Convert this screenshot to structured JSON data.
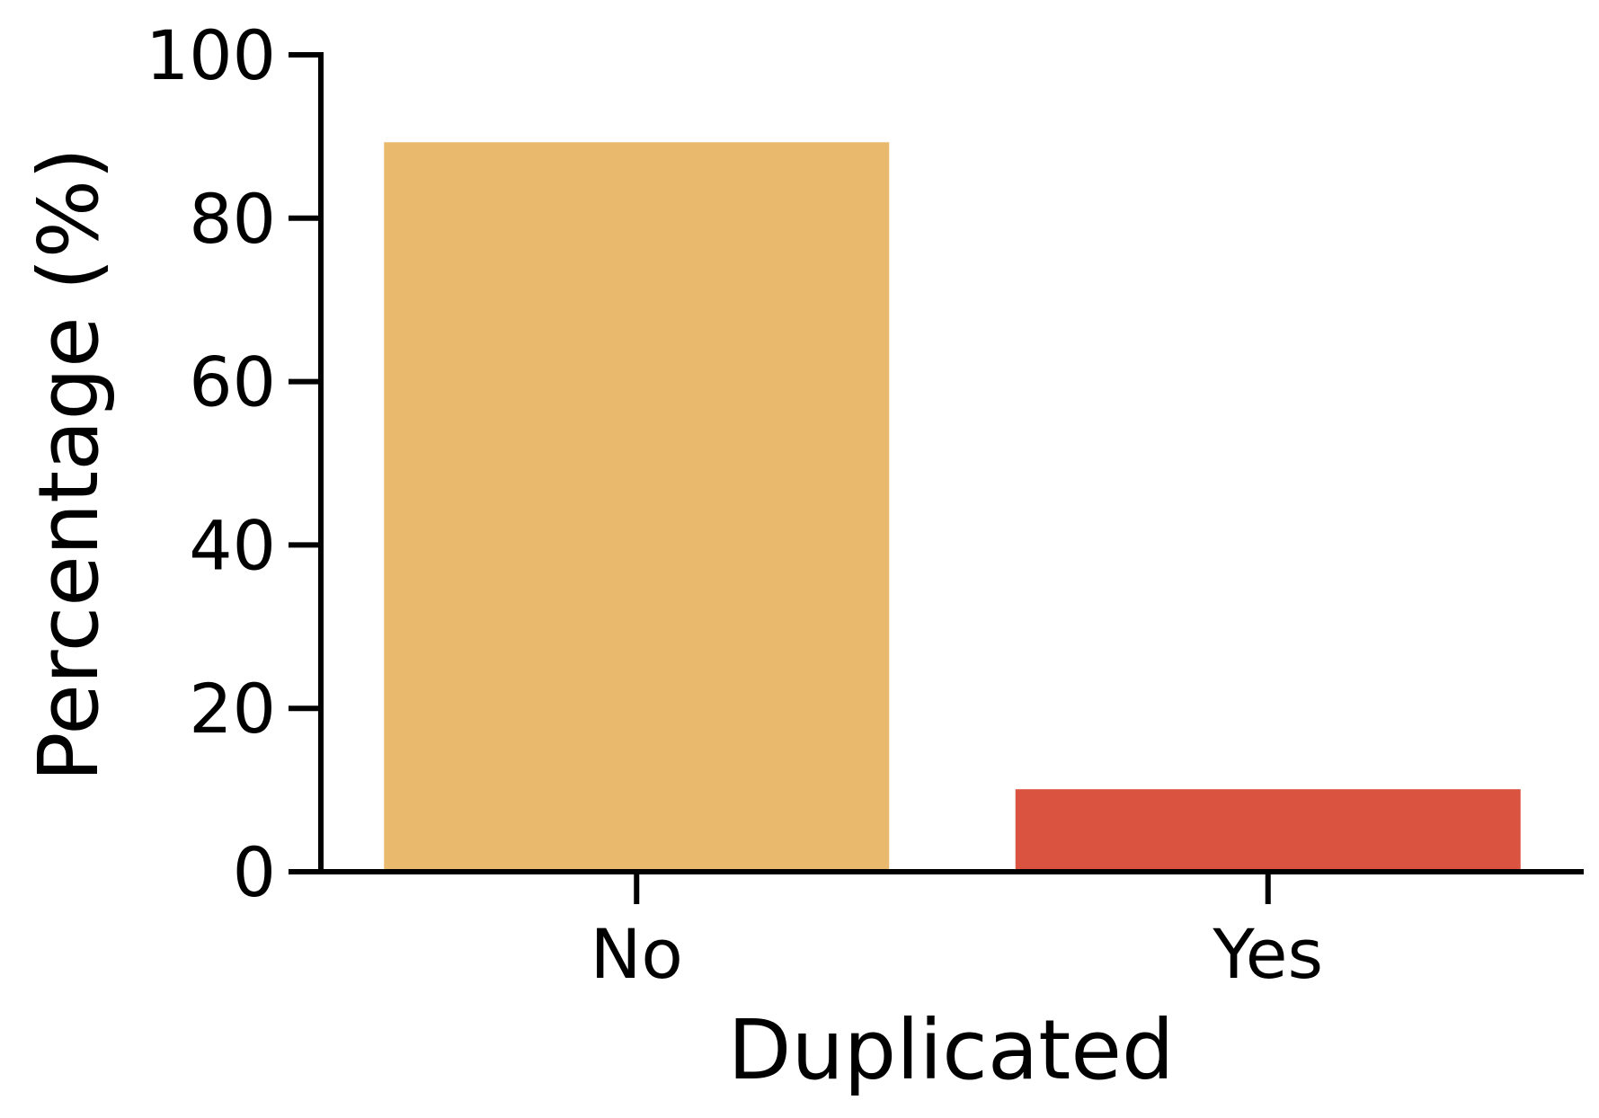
{
  "chart_data": {
    "type": "bar",
    "categories": [
      "No",
      "Yes"
    ],
    "values": [
      89.3,
      10.1
    ],
    "colors": [
      "#E9BA6D",
      "#DA5240"
    ],
    "xlabel": "Duplicated",
    "ylabel": "Percentage (%)",
    "ylim": [
      0,
      100
    ],
    "yticks": [
      0,
      20,
      40,
      60,
      80,
      100
    ],
    "ytick_labels": [
      "0",
      "20",
      "40",
      "60",
      "80",
      "100"
    ],
    "grid": false,
    "legend": "none"
  }
}
